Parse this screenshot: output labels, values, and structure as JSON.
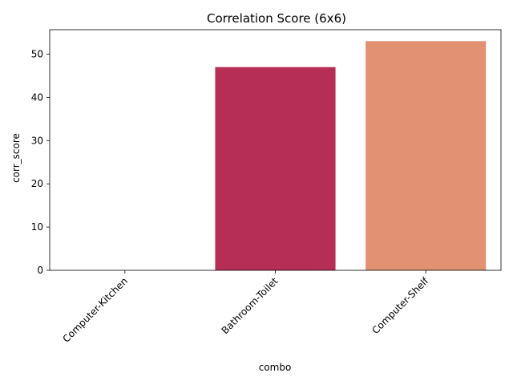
{
  "chart_data": {
    "type": "bar",
    "title": "Correlation Score (6x6)",
    "xlabel": "combo",
    "ylabel": "corr_score",
    "categories": [
      "Computer-Kitchen",
      "Bathroom-Toilet",
      "Computer-Shelf"
    ],
    "values": [
      0,
      47,
      53
    ],
    "colors": [
      "#3b1f4a",
      "#b62e56",
      "#e29173"
    ],
    "ylim": [
      0,
      55.65
    ],
    "yticks": [
      0,
      10,
      20,
      30,
      40,
      50
    ],
    "grid": false,
    "legend": "none"
  }
}
